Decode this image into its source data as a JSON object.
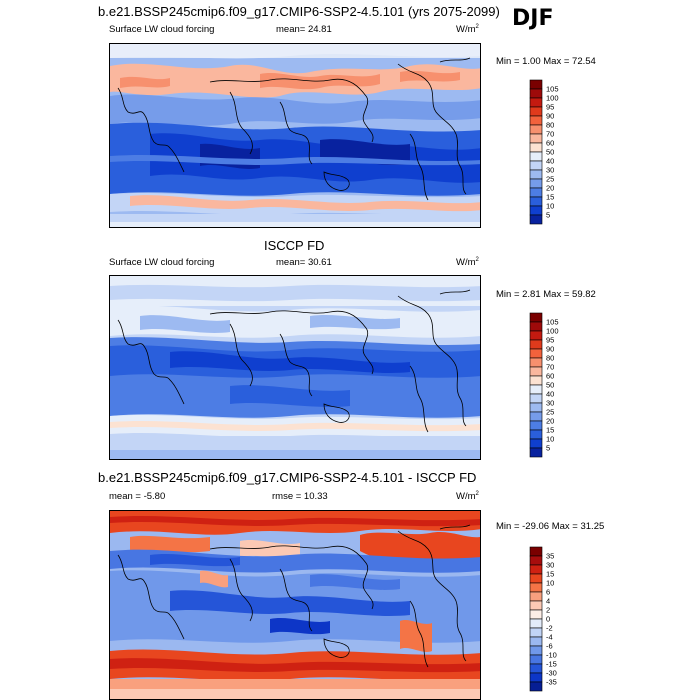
{
  "figure": {
    "title": "b.e21.BSSP245cmip6.f09_g17.CMIP6-SSP2-4.5.101 (yrs 2075-2099)",
    "season": "DJF"
  },
  "panels": [
    {
      "id": "model",
      "header_left": "Surface LW cloud forcing",
      "header_mid": "mean=  24.81",
      "units": "W/m",
      "units_sup": "2",
      "minmax": "Min =   1.00 Max =  72.54",
      "levels": [
        "105",
        "100",
        "95",
        "90",
        "80",
        "70",
        "60",
        "50",
        "40",
        "30",
        "25",
        "20",
        "15",
        "10",
        "5"
      ],
      "colors": [
        "#7a0000",
        "#9e0a0a",
        "#c41a10",
        "#e03a1c",
        "#f2623c",
        "#f7906e",
        "#fab79e",
        "#fce2d2",
        "#e6eefa",
        "#c3d5f6",
        "#9dbaf1",
        "#769cea",
        "#4d7de4",
        "#2a5fdc",
        "#0f3fcf",
        "#08229f"
      ]
    },
    {
      "id": "obs",
      "title": "ISCCP FD",
      "header_left": "Surface LW cloud forcing",
      "header_mid": "mean=  30.61",
      "units": "W/m",
      "units_sup": "2",
      "minmax": "Min =   2.81 Max =  59.82",
      "levels": [
        "105",
        "100",
        "95",
        "90",
        "80",
        "70",
        "60",
        "50",
        "40",
        "30",
        "25",
        "20",
        "15",
        "10",
        "5"
      ],
      "colors": [
        "#7a0000",
        "#9e0a0a",
        "#c41a10",
        "#e03a1c",
        "#f2623c",
        "#f7906e",
        "#fab79e",
        "#fce2d2",
        "#e6eefa",
        "#c3d5f6",
        "#9dbaf1",
        "#769cea",
        "#4d7de4",
        "#2a5fdc",
        "#0f3fcf",
        "#08229f"
      ]
    },
    {
      "id": "diff",
      "title": "b.e21.BSSP245cmip6.f09_g17.CMIP6-SSP2-4.5.101 - ISCCP FD",
      "header_left": "mean =  -5.80",
      "header_mid": "rmse =  10.33",
      "units": "W/m",
      "units_sup": "2",
      "minmax": "Min = -29.06 Max =  31.25",
      "levels": [
        "35",
        "30",
        "15",
        "10",
        "6",
        "4",
        "2",
        "0",
        "-2",
        "-4",
        "-6",
        "-10",
        "-15",
        "-30",
        "-35"
      ],
      "colors": [
        "#7a0000",
        "#a80d0d",
        "#cf2112",
        "#e8461f",
        "#f47446",
        "#f9a07e",
        "#fcc9b4",
        "#fdeee6",
        "#e3ecfa",
        "#c1d4f6",
        "#9bb8f0",
        "#7098ea",
        "#4876e2",
        "#2555d8",
        "#0d36c7",
        "#061e94"
      ]
    }
  ]
}
